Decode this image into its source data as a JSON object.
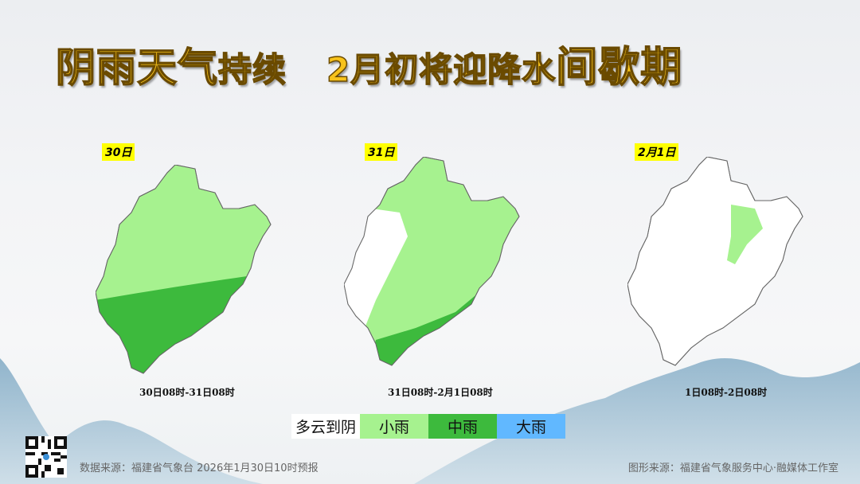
{
  "title": {
    "part1": "阴雨天气",
    "part2": "持续",
    "part3": "2月初将迎降水",
    "part4": "间歇期"
  },
  "maps": [
    {
      "day": "30日",
      "range": "30日08时-31日08时"
    },
    {
      "day": "31日",
      "range": "31日08时-2月1日08时"
    },
    {
      "day": "2月1日",
      "range": "1日08时-2日08时"
    }
  ],
  "legend": [
    {
      "label": "多云到阴",
      "color": "#ffffff"
    },
    {
      "label": "小雨",
      "color": "#a6f28f"
    },
    {
      "label": "中雨",
      "color": "#3dba3d"
    },
    {
      "label": "大雨",
      "color": "#61b8ff"
    }
  ],
  "footer": {
    "data_source": "数据来源：福建省气象台 2026年1月30日10时预报",
    "graphic_source": "图形来源：福建省气象服务中心·融媒体工作室"
  }
}
